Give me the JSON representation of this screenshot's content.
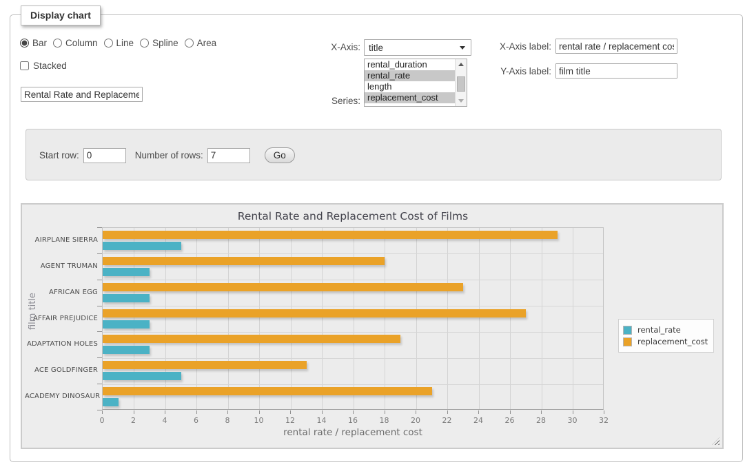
{
  "window": {
    "legend": "Display chart"
  },
  "chart_types": [
    {
      "label": "Bar",
      "selected": true
    },
    {
      "label": "Column",
      "selected": false
    },
    {
      "label": "Line",
      "selected": false
    },
    {
      "label": "Spline",
      "selected": false
    },
    {
      "label": "Area",
      "selected": false
    }
  ],
  "stacked": {
    "label": "Stacked",
    "checked": false
  },
  "title_input": {
    "value": "Rental Rate and Replacement Cost of Films"
  },
  "form": {
    "x_axis": {
      "label": "X-Axis:",
      "value": "title"
    },
    "series": {
      "label": "Series:",
      "options": [
        {
          "label": "rental_duration",
          "selected": false
        },
        {
          "label": "rental_rate",
          "selected": true
        },
        {
          "label": "length",
          "selected": false
        },
        {
          "label": "replacement_cost",
          "selected": true
        }
      ]
    },
    "x_axis_label": {
      "label": "X-Axis label:",
      "value": "rental rate / replacement cost"
    },
    "y_axis_label": {
      "label": "Y-Axis label:",
      "value": "film title"
    },
    "start_row": {
      "label": "Start row:",
      "value": "0"
    },
    "num_rows": {
      "label": "Number of rows:",
      "value": "7"
    },
    "go_button": "Go"
  },
  "chart_data": {
    "type": "bar",
    "orientation": "horizontal",
    "title": "Rental Rate and Replacement Cost of Films",
    "xlabel": "rental rate / replacement cost",
    "ylabel": "film title",
    "categories": [
      "AIRPLANE SIERRA",
      "AGENT TRUMAN",
      "AFRICAN EGG",
      "AFFAIR PREJUDICE",
      "ADAPTATION HOLES",
      "ACE GOLDFINGER",
      "ACADEMY DINOSAUR"
    ],
    "series": [
      {
        "name": "rental_rate",
        "color": "#4bb2c5",
        "values": [
          4.99,
          2.99,
          2.99,
          2.99,
          2.99,
          4.99,
          0.99
        ]
      },
      {
        "name": "replacement_cost",
        "color": "#eaa228",
        "values": [
          28.99,
          17.99,
          22.99,
          26.99,
          18.99,
          12.99,
          20.99
        ]
      }
    ],
    "xlim": [
      0,
      32
    ],
    "xtick_step": 2,
    "grid": true,
    "legend_position": "outside-right"
  }
}
